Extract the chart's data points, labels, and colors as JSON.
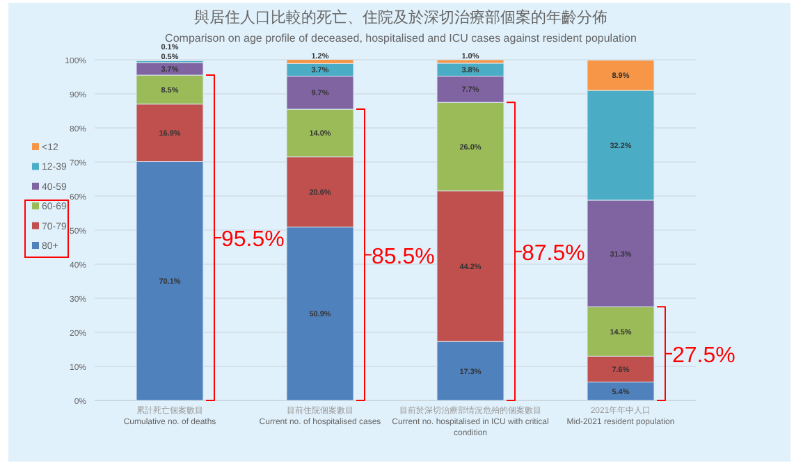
{
  "chart_data": {
    "type": "bar",
    "stacked": true,
    "title": "與居住人口比較的死亡、住院及於深切治療部個案的年齡分佈",
    "subtitle": "Comparison on age profile of deceased, hospitalised and ICU cases against resident population",
    "categories": [
      "累計死亡個案數目\nCumulative no. of deaths",
      "目前住院個案數目\nCurrent no. of hospitalised cases",
      "目前於深切治療部情況危殆的個案數目\nCurrent no. hospitalised in ICU with critical condition",
      "2021年年中人口\nMid-2021 resident population"
    ],
    "series": [
      {
        "name": "80+",
        "color": "#4f81bd",
        "values": [
          70.1,
          50.9,
          17.3,
          5.4
        ],
        "value_labels": [
          "70.1%",
          "50.9%",
          "17.3%",
          "5.4%"
        ]
      },
      {
        "name": "70-79",
        "color": "#c0504d",
        "values": [
          16.9,
          20.6,
          44.2,
          7.6
        ],
        "value_labels": [
          "16.9%",
          "20.6%",
          "44.2%",
          "7.6%"
        ]
      },
      {
        "name": "60-69",
        "color": "#9bbb59",
        "values": [
          8.5,
          14.0,
          26.0,
          14.5
        ],
        "value_labels": [
          "8.5%",
          "14.0%",
          "26.0%",
          "14.5%"
        ]
      },
      {
        "name": "40-59",
        "color": "#8064a2",
        "values": [
          3.7,
          9.7,
          7.7,
          31.3
        ],
        "value_labels": [
          "3.7%",
          "9.7%",
          "7.7%",
          "31.3%"
        ]
      },
      {
        "name": "12-39",
        "color": "#4bacc6",
        "values": [
          0.5,
          3.7,
          3.8,
          32.2
        ],
        "value_labels": [
          "0.5%",
          "3.7%",
          "3.8%",
          "32.2%"
        ]
      },
      {
        "name": "<12",
        "color": "#f79646",
        "values": [
          0.1,
          1.2,
          1.0,
          8.9
        ],
        "value_labels": [
          "0.1%",
          "1.2%",
          "1.0%",
          "8.9%"
        ]
      }
    ],
    "ylim": [
      0,
      100
    ],
    "yticks": [
      {
        "value": 0,
        "label": "0%"
      },
      {
        "value": 10,
        "label": "10%"
      },
      {
        "value": 20,
        "label": "20%"
      },
      {
        "value": 30,
        "label": "30%"
      },
      {
        "value": 40,
        "label": "40%"
      },
      {
        "value": 50,
        "label": "50%"
      },
      {
        "value": 60,
        "label": "60%"
      },
      {
        "value": 70,
        "label": "70%"
      },
      {
        "value": 80,
        "label": "80%"
      },
      {
        "value": 90,
        "label": "90%"
      },
      {
        "value": 100,
        "label": "100%"
      }
    ],
    "grid": "y",
    "legend": "left",
    "annotations": [
      "95.5%",
      "85.5%",
      "87.5%",
      "27.5%"
    ]
  }
}
